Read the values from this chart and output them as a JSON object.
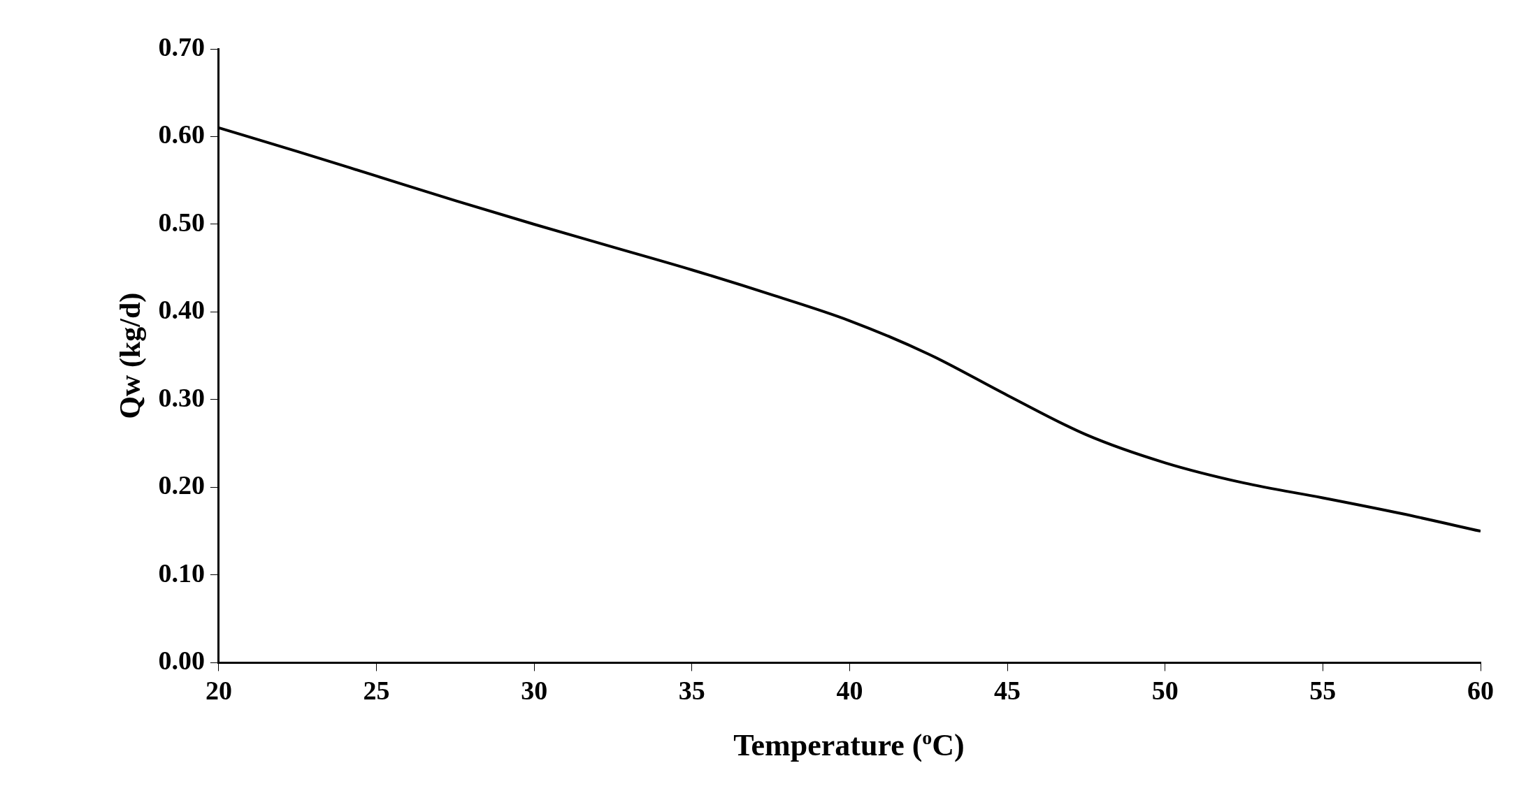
{
  "chart_data": {
    "type": "line",
    "xlabel": "Temperature ($^{o}$C)",
    "ylabel": "Qw (kg/d)",
    "x": [
      20,
      22.5,
      25,
      27.5,
      30,
      32.5,
      35,
      37.5,
      40,
      42.5,
      45,
      47.5,
      50,
      52.5,
      55,
      57.5,
      60
    ],
    "series": [
      {
        "color": "#000000",
        "values": [
          0.61,
          0.583,
          0.555,
          0.527,
          0.5,
          0.474,
          0.448,
          0.42,
          0.39,
          0.352,
          0.305,
          0.26,
          0.228,
          0.205,
          0.188,
          0.17,
          0.15
        ]
      }
    ],
    "xlim": [
      20,
      60
    ],
    "xticks": [
      20,
      25,
      30,
      35,
      40,
      45,
      50,
      55,
      60
    ],
    "ylim": [
      0,
      0.7
    ],
    "yticks": [
      {
        "value": 0,
        "label": "0.00"
      },
      {
        "value": 0.1,
        "label": "0.10"
      },
      {
        "value": 0.2,
        "label": "0.20"
      },
      {
        "value": 0.3,
        "label": "0.30"
      },
      {
        "value": 0.4,
        "label": "0.40"
      },
      {
        "value": 0.5,
        "label": "0.50"
      },
      {
        "value": 0.6,
        "label": "0.60"
      },
      {
        "value": 0.7,
        "label": "0.70"
      }
    ],
    "marker": "none",
    "line_style": "solid"
  }
}
